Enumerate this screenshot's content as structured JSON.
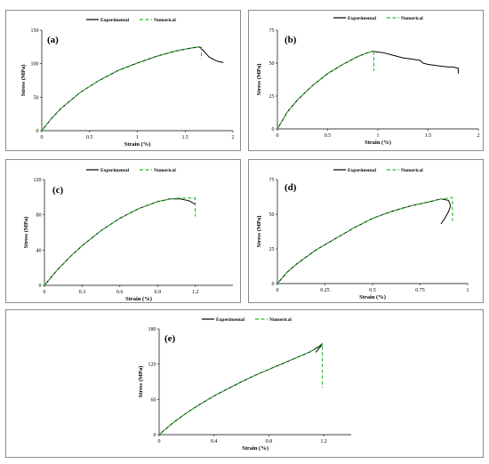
{
  "legend": {
    "experimental": "Experimental",
    "numerical": "Numerical"
  },
  "colors": {
    "experimental": "#000000",
    "numerical": "#2db82d"
  },
  "chart_data": [
    {
      "type": "line",
      "label": "(a)",
      "xlabel": "Strain (%)",
      "ylabel": "Stress (MPa)",
      "xlim": [
        0,
        2
      ],
      "ylim": [
        0,
        150
      ],
      "xticks": [
        "0",
        "0.5",
        "1",
        "1.5",
        "2"
      ],
      "xtick_values": [
        0,
        0.5,
        1,
        1.5,
        2
      ],
      "yticks": [
        "0",
        "50",
        "100",
        "150"
      ],
      "ytick_values": [
        0,
        50,
        100,
        150
      ],
      "series": [
        {
          "name": "Experimental",
          "x": [
            0,
            0.1,
            0.2,
            0.4,
            0.6,
            0.8,
            1.0,
            1.2,
            1.4,
            1.55,
            1.65,
            1.7,
            1.75,
            1.8,
            1.85,
            1.9
          ],
          "y": [
            0,
            18,
            33,
            57,
            75,
            90,
            101,
            111,
            119,
            123,
            125,
            118,
            110,
            106,
            103,
            102
          ]
        },
        {
          "name": "Numerical",
          "x": [
            0,
            0.1,
            0.2,
            0.4,
            0.6,
            0.8,
            1.0,
            1.2,
            1.4,
            1.55,
            1.67,
            1.67
          ],
          "y": [
            0,
            18,
            33,
            57,
            75,
            90,
            101,
            111,
            119,
            123,
            125,
            107
          ]
        }
      ]
    },
    {
      "type": "line",
      "label": "(b)",
      "xlabel": "Strain (%)",
      "ylabel": "Stress (MPa)",
      "xlim": [
        0,
        2
      ],
      "ylim": [
        0,
        75
      ],
      "xticks": [
        "0",
        "0.5",
        "1",
        "1.5",
        "2"
      ],
      "xtick_values": [
        0,
        0.5,
        1,
        1.5,
        2
      ],
      "yticks": [
        "0",
        "25",
        "50",
        "75"
      ],
      "ytick_values": [
        0,
        25,
        50,
        75
      ],
      "series": [
        {
          "name": "Experimental",
          "x": [
            0,
            0.1,
            0.2,
            0.35,
            0.5,
            0.65,
            0.8,
            0.9,
            0.95,
            1.05,
            1.15,
            1.25,
            1.35,
            1.42,
            1.45,
            1.5,
            1.6,
            1.7,
            1.75,
            1.8,
            1.8
          ],
          "y": [
            0,
            13,
            22,
            33,
            42,
            49,
            55,
            58,
            59,
            58,
            56,
            54,
            53,
            52,
            50,
            49,
            48,
            47,
            47,
            46,
            42
          ]
        },
        {
          "name": "Numerical",
          "x": [
            0,
            0.1,
            0.2,
            0.35,
            0.5,
            0.65,
            0.8,
            0.9,
            0.96,
            0.96
          ],
          "y": [
            0,
            13,
            22,
            33,
            42,
            49,
            55,
            58,
            59,
            44
          ]
        }
      ]
    },
    {
      "type": "line",
      "label": "(c)",
      "xlabel": "Strain (%)",
      "ylabel": "Stress (MPa)",
      "xlim": [
        0,
        1.5
      ],
      "ylim": [
        0,
        120
      ],
      "xticks": [
        "0",
        "0.3",
        "0.6",
        "0.9",
        "1.2"
      ],
      "xtick_values": [
        0,
        0.3,
        0.6,
        0.9,
        1.2
      ],
      "yticks": [
        "0",
        "40",
        "80",
        "120"
      ],
      "ytick_values": [
        0,
        40,
        80,
        120
      ],
      "series": [
        {
          "name": "Experimental",
          "x": [
            0,
            0.1,
            0.2,
            0.3,
            0.45,
            0.6,
            0.75,
            0.9,
            1.0,
            1.08,
            1.15,
            1.2
          ],
          "y": [
            0,
            17,
            32,
            45,
            62,
            76,
            87,
            95,
            98,
            98,
            96,
            92
          ]
        },
        {
          "name": "Numerical",
          "x": [
            0,
            0.1,
            0.2,
            0.3,
            0.45,
            0.6,
            0.75,
            0.9,
            1.0,
            1.08,
            1.2,
            1.2
          ],
          "y": [
            0,
            17,
            32,
            45,
            62,
            76,
            87,
            95,
            98,
            99,
            99,
            78
          ]
        }
      ]
    },
    {
      "type": "line",
      "label": "(d)",
      "xlabel": "Strain (%)",
      "ylabel": "Stress (MPa)",
      "xlim": [
        0,
        1
      ],
      "ylim": [
        0,
        75
      ],
      "xticks": [
        "0",
        "0.25",
        "0.5",
        "0.75",
        "1"
      ],
      "xtick_values": [
        0,
        0.25,
        0.5,
        0.75,
        1
      ],
      "yticks": [
        "0",
        "25",
        "50",
        "75"
      ],
      "ytick_values": [
        0,
        25,
        50,
        75
      ],
      "series": [
        {
          "name": "Experimental",
          "x": [
            0,
            0.05,
            0.1,
            0.2,
            0.3,
            0.4,
            0.5,
            0.6,
            0.7,
            0.8,
            0.86,
            0.9,
            0.91,
            0.9,
            0.88,
            0.86
          ],
          "y": [
            0,
            8,
            14,
            24,
            32,
            40,
            47,
            52,
            56,
            59,
            61,
            60,
            56,
            52,
            47,
            43
          ]
        },
        {
          "name": "Numerical",
          "x": [
            0,
            0.05,
            0.1,
            0.2,
            0.3,
            0.4,
            0.5,
            0.6,
            0.7,
            0.8,
            0.86,
            0.92,
            0.92
          ],
          "y": [
            0,
            8,
            14,
            24,
            32,
            40,
            47,
            52,
            56,
            59,
            61,
            62,
            45
          ]
        }
      ]
    },
    {
      "type": "line",
      "label": "(e)",
      "xlabel": "Strain (%)",
      "ylabel": "Stress (MPa)",
      "xlim": [
        0,
        1.4
      ],
      "ylim": [
        0,
        180
      ],
      "xticks": [
        "0",
        "0.4",
        "0.8",
        "1.2"
      ],
      "xtick_values": [
        0,
        0.4,
        0.8,
        1.2
      ],
      "yticks": [
        "0",
        "60",
        "120",
        "180"
      ],
      "ytick_values": [
        0,
        60,
        120,
        180
      ],
      "series": [
        {
          "name": "Experimental",
          "x": [
            0,
            0.1,
            0.2,
            0.3,
            0.4,
            0.5,
            0.6,
            0.7,
            0.8,
            0.9,
            1.0,
            1.1,
            1.16,
            1.19,
            1.17,
            1.14
          ],
          "y": [
            0,
            20,
            37,
            52,
            66,
            78,
            90,
            101,
            111,
            121,
            131,
            141,
            149,
            154,
            148,
            140
          ]
        },
        {
          "name": "Numerical",
          "x": [
            0,
            0.1,
            0.2,
            0.3,
            0.4,
            0.5,
            0.6,
            0.7,
            0.8,
            0.9,
            1.0,
            1.1,
            1.19,
            1.19
          ],
          "y": [
            0,
            20,
            37,
            52,
            66,
            78,
            90,
            101,
            111,
            121,
            131,
            141,
            155,
            80
          ]
        }
      ]
    }
  ]
}
